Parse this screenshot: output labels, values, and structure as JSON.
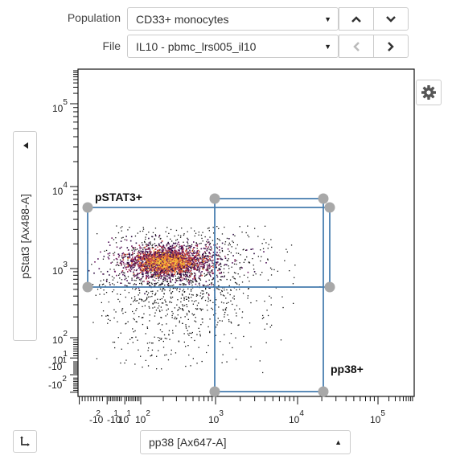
{
  "population": {
    "label": "Population",
    "value": "CD33+ monocytes"
  },
  "file": {
    "label": "File",
    "value": "IL10 - pbmc_lrs005_il10"
  },
  "x_axis_select": {
    "value": "pp38 [Ax647-A]"
  },
  "y_axis_select": {
    "value": "pStat3 [Ax488-A]"
  },
  "gates": [
    {
      "name": "pSTAT3+"
    },
    {
      "name": "pp38+"
    }
  ],
  "x_ticks": [
    {
      "base": "-10",
      "exp": "2"
    },
    {
      "base": "-10",
      "exp": "1"
    },
    {
      "base": "10",
      "exp": "1"
    },
    {
      "base": "10",
      "exp": "2"
    },
    {
      "base": "10",
      "exp": "3"
    },
    {
      "base": "10",
      "exp": "4"
    },
    {
      "base": "10",
      "exp": "5"
    }
  ],
  "y_ticks": [
    {
      "base": "10",
      "exp": "5"
    },
    {
      "base": "10",
      "exp": "4"
    },
    {
      "base": "10",
      "exp": "3"
    },
    {
      "base": "10",
      "exp": "2"
    },
    {
      "base": "10",
      "exp": "1"
    },
    {
      "base": "-10",
      "exp": "1"
    },
    {
      "base": "-10",
      "exp": "2"
    }
  ],
  "icons": [
    "chevron-up-icon",
    "chevron-down-icon",
    "chevron-left-icon",
    "chevron-right-icon",
    "gear-icon",
    "swap-axes-icon",
    "caret-left-icon"
  ]
}
